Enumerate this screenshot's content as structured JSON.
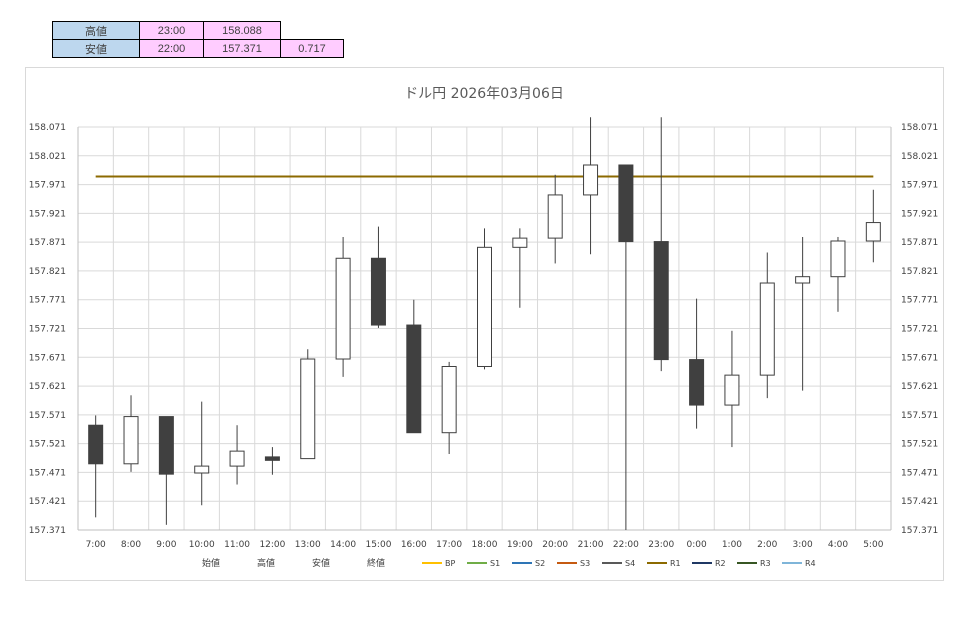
{
  "summary": {
    "high_label": "高値",
    "high_time": "23:00",
    "high_value": "158.088",
    "low_label": "安値",
    "low_time": "22:00",
    "low_value": "157.371",
    "range": "0.717"
  },
  "chart_data": {
    "type": "candlestick",
    "title": "ドル円  2026年03月06日",
    "ylim": [
      157.371,
      158.071
    ],
    "yticks": [
      "158.071",
      "158.021",
      "157.971",
      "157.921",
      "157.871",
      "157.821",
      "157.771",
      "157.721",
      "157.671",
      "157.621",
      "157.571",
      "157.521",
      "157.471",
      "157.421",
      "157.371"
    ],
    "categories": [
      "7:00",
      "8:00",
      "9:00",
      "10:00",
      "11:00",
      "12:00",
      "13:00",
      "14:00",
      "15:00",
      "16:00",
      "17:00",
      "18:00",
      "19:00",
      "20:00",
      "21:00",
      "22:00",
      "23:00",
      "0:00",
      "1:00",
      "2:00",
      "3:00",
      "4:00",
      "5:00"
    ],
    "open": [
      157.553,
      157.486,
      157.568,
      157.47,
      157.482,
      157.498,
      157.495,
      157.668,
      157.843,
      157.727,
      157.54,
      157.655,
      157.862,
      157.878,
      157.953,
      158.005,
      157.872,
      157.667,
      157.588,
      157.64,
      157.8,
      157.811,
      157.873
    ],
    "high": [
      157.57,
      157.605,
      157.568,
      157.594,
      157.553,
      157.515,
      157.685,
      157.88,
      157.898,
      157.771,
      157.663,
      157.895,
      157.895,
      157.988,
      158.088,
      158.005,
      158.088,
      157.773,
      157.717,
      157.853,
      157.88,
      157.88,
      157.962
    ],
    "low": [
      157.393,
      157.472,
      157.38,
      157.414,
      157.45,
      157.467,
      157.495,
      157.637,
      157.722,
      157.54,
      157.503,
      157.65,
      157.757,
      157.834,
      157.85,
      157.371,
      157.647,
      157.547,
      157.515,
      157.6,
      157.613,
      157.75,
      157.836
    ],
    "close": [
      157.486,
      157.568,
      157.468,
      157.482,
      157.508,
      157.492,
      157.668,
      157.843,
      157.727,
      157.54,
      157.655,
      157.862,
      157.878,
      157.953,
      158.005,
      157.872,
      157.667,
      157.588,
      157.64,
      157.8,
      157.811,
      157.873,
      157.905
    ],
    "lines": [
      {
        "name": "R1",
        "value": 157.985,
        "color": "#8c6a00"
      }
    ],
    "legend": {
      "position": "bottom",
      "items": [
        {
          "name": "始値",
          "color": ""
        },
        {
          "name": "高値",
          "color": ""
        },
        {
          "name": "安値",
          "color": ""
        },
        {
          "name": "終値",
          "color": ""
        },
        {
          "name": "BP",
          "color": "#ffc000"
        },
        {
          "name": "S1",
          "color": "#70ad47"
        },
        {
          "name": "S2",
          "color": "#2e75b6"
        },
        {
          "name": "S3",
          "color": "#c55a11"
        },
        {
          "name": "S4",
          "color": "#595959"
        },
        {
          "name": "R1",
          "color": "#8c6a00"
        },
        {
          "name": "R2",
          "color": "#1f3864"
        },
        {
          "name": "R3",
          "color": "#375623"
        },
        {
          "name": "R4",
          "color": "#7fb5d9"
        }
      ]
    },
    "grid": true,
    "colors": {
      "up": "#ffffff",
      "down": "#404040",
      "outline": "#404040"
    }
  }
}
